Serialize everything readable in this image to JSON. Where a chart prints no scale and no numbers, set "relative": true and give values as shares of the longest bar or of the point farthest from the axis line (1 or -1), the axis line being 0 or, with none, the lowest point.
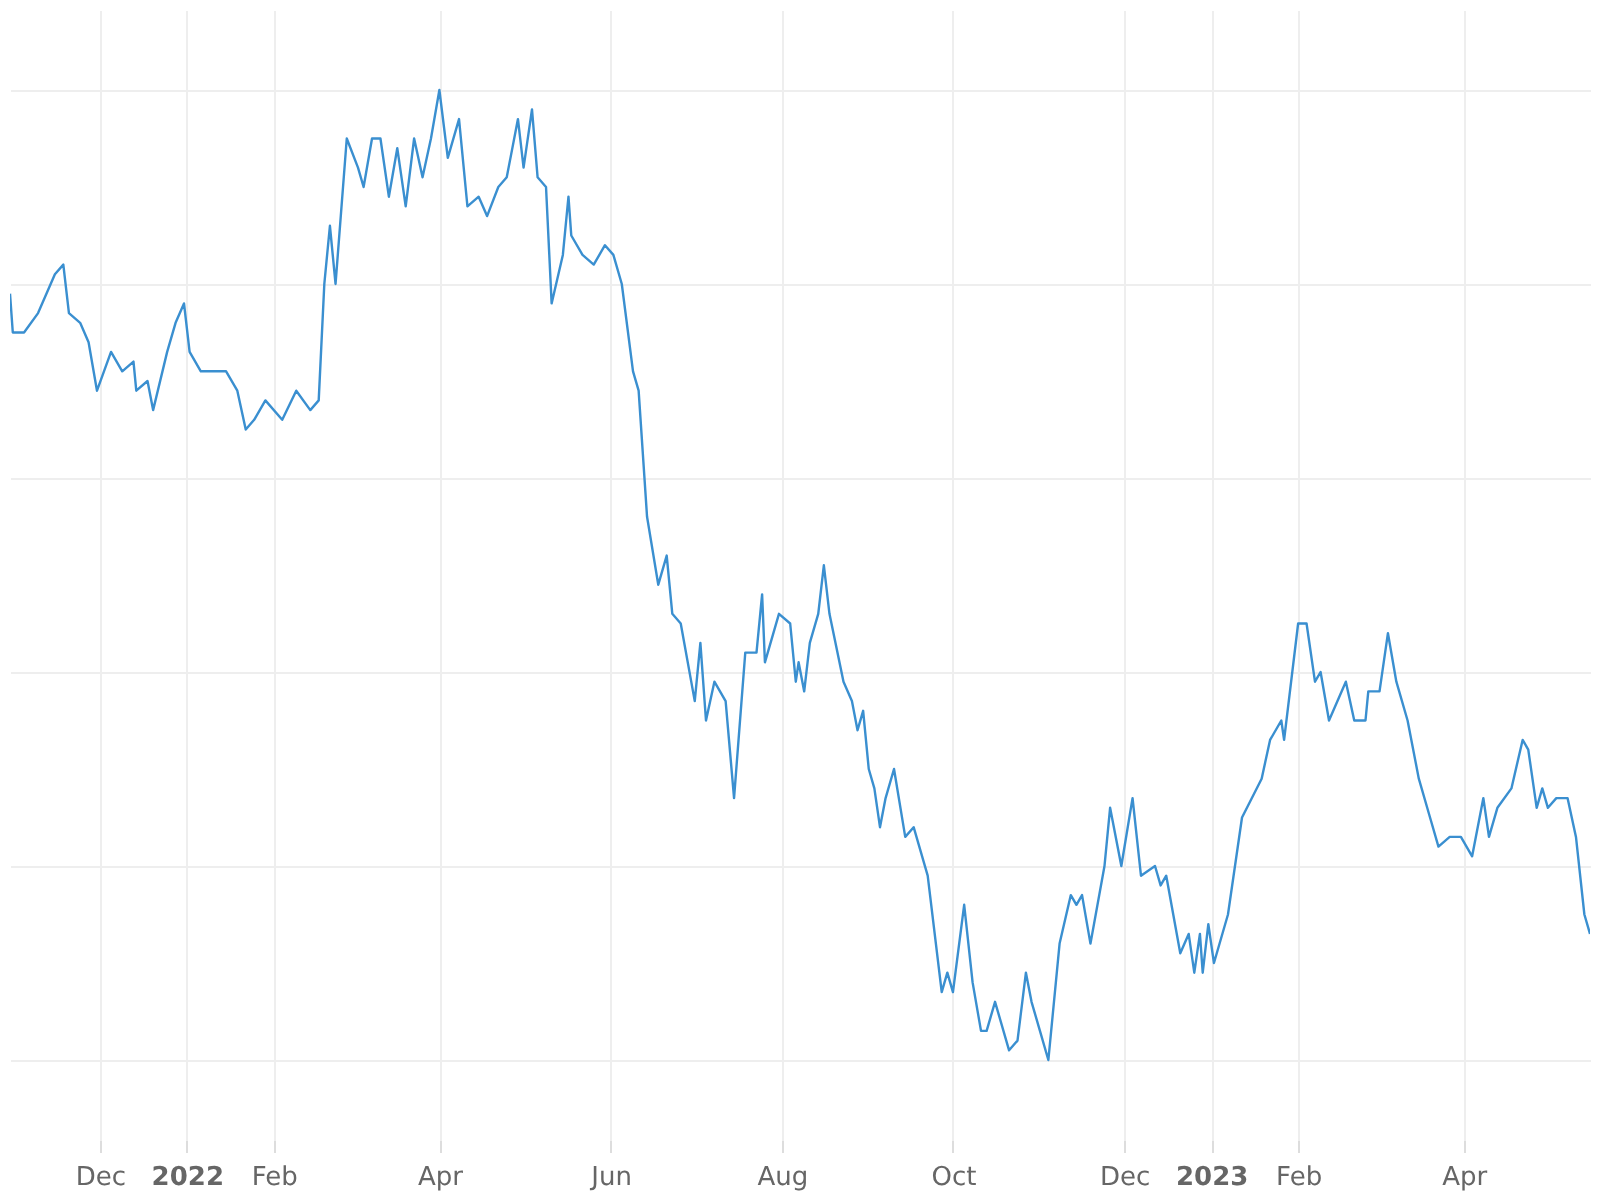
{
  "chart_data": {
    "type": "line",
    "relative": true,
    "grid": true,
    "line_style": "solid",
    "marker": "none",
    "xlim": [
      "2021-10-30",
      "2023-05-16"
    ],
    "xticks": [
      {
        "value": "2021-12-01",
        "label": "Dec"
      },
      {
        "value": "2022-01-01",
        "label": "2022"
      },
      {
        "value": "2022-02-01",
        "label": "Feb"
      },
      {
        "value": "2022-04-01",
        "label": "Apr"
      },
      {
        "value": "2022-06-01",
        "label": "Jun"
      },
      {
        "value": "2022-08-01",
        "label": "Aug"
      },
      {
        "value": "2022-10-01",
        "label": "Oct"
      },
      {
        "value": "2022-12-01",
        "label": "Dec"
      },
      {
        "value": "2023-01-01",
        "label": "2023"
      },
      {
        "value": "2023-02-01",
        "label": "Feb"
      },
      {
        "value": "2023-04-01",
        "label": "Apr"
      }
    ],
    "x": [
      "2021-10-30",
      "2021-10-31",
      "2021-11-04",
      "2021-11-09",
      "2021-11-15",
      "2021-11-18",
      "2021-11-20",
      "2021-11-24",
      "2021-11-27",
      "2021-11-30",
      "2021-12-05",
      "2021-12-09",
      "2021-12-13",
      "2021-12-14",
      "2021-12-18",
      "2021-12-20",
      "2021-12-25",
      "2021-12-28",
      "2021-12-31",
      "2022-01-02",
      "2022-01-06",
      "2022-01-11",
      "2022-01-15",
      "2022-01-19",
      "2022-01-22",
      "2022-01-25",
      "2022-01-29",
      "2022-02-04",
      "2022-02-09",
      "2022-02-14",
      "2022-02-17",
      "2022-02-19",
      "2022-02-21",
      "2022-02-23",
      "2022-02-27",
      "2022-03-03",
      "2022-03-05",
      "2022-03-08",
      "2022-03-11",
      "2022-03-14",
      "2022-03-17",
      "2022-03-20",
      "2022-03-23",
      "2022-03-26",
      "2022-03-29",
      "2022-04-01",
      "2022-04-04",
      "2022-04-08",
      "2022-04-11",
      "2022-04-15",
      "2022-04-18",
      "2022-04-22",
      "2022-04-25",
      "2022-04-29",
      "2022-05-01",
      "2022-05-04",
      "2022-05-06",
      "2022-05-09",
      "2022-05-11",
      "2022-05-15",
      "2022-05-17",
      "2022-05-18",
      "2022-05-22",
      "2022-05-26",
      "2022-05-30",
      "2022-06-02",
      "2022-06-05",
      "2022-06-09",
      "2022-06-11",
      "2022-06-14",
      "2022-06-18",
      "2022-06-21",
      "2022-06-23",
      "2022-06-26",
      "2022-07-01",
      "2022-07-03",
      "2022-07-05",
      "2022-07-08",
      "2022-07-12",
      "2022-07-15",
      "2022-07-19",
      "2022-07-23",
      "2022-07-25",
      "2022-07-26",
      "2022-07-31",
      "2022-08-04",
      "2022-08-06",
      "2022-08-07",
      "2022-08-09",
      "2022-08-11",
      "2022-08-14",
      "2022-08-16",
      "2022-08-18",
      "2022-08-23",
      "2022-08-26",
      "2022-08-28",
      "2022-08-30",
      "2022-09-01",
      "2022-09-03",
      "2022-09-05",
      "2022-09-07",
      "2022-09-10",
      "2022-09-14",
      "2022-09-17",
      "2022-09-22",
      "2022-09-27",
      "2022-09-29",
      "2022-10-01",
      "2022-10-05",
      "2022-10-08",
      "2022-10-11",
      "2022-10-13",
      "2022-10-16",
      "2022-10-21",
      "2022-10-24",
      "2022-10-27",
      "2022-10-29",
      "2022-11-01",
      "2022-11-04",
      "2022-11-08",
      "2022-11-12",
      "2022-11-14",
      "2022-11-16",
      "2022-11-19",
      "2022-11-24",
      "2022-11-26",
      "2022-11-30",
      "2022-12-04",
      "2022-12-07",
      "2022-12-12",
      "2022-12-14",
      "2022-12-16",
      "2022-12-21",
      "2022-12-24",
      "2022-12-26",
      "2022-12-28",
      "2022-12-29",
      "2022-12-31",
      "2023-01-02",
      "2023-01-07",
      "2023-01-12",
      "2023-01-19",
      "2023-01-22",
      "2023-01-26",
      "2023-01-27",
      "2023-02-01",
      "2023-02-04",
      "2023-02-07",
      "2023-02-09",
      "2023-02-12",
      "2023-02-18",
      "2023-02-21",
      "2023-02-25",
      "2023-02-26",
      "2023-03-02",
      "2023-03-05",
      "2023-03-08",
      "2023-03-12",
      "2023-03-16",
      "2023-03-20",
      "2023-03-23",
      "2023-03-27",
      "2023-03-31",
      "2023-04-04",
      "2023-04-08",
      "2023-04-10",
      "2023-04-13",
      "2023-04-18",
      "2023-04-22",
      "2023-04-24",
      "2023-04-27",
      "2023-04-29",
      "2023-05-01",
      "2023-05-04",
      "2023-05-08",
      "2023-05-11",
      "2023-05-14",
      "2023-05-16"
    ],
    "series": [
      {
        "color": "#3a8fd0",
        "values": [
          0.79,
          0.75,
          0.75,
          0.77,
          0.81,
          0.82,
          0.77,
          0.76,
          0.74,
          0.69,
          0.73,
          0.71,
          0.72,
          0.69,
          0.7,
          0.67,
          0.73,
          0.76,
          0.78,
          0.73,
          0.71,
          0.71,
          0.71,
          0.69,
          0.65,
          0.66,
          0.68,
          0.66,
          0.69,
          0.67,
          0.68,
          0.8,
          0.86,
          0.8,
          0.95,
          0.92,
          0.9,
          0.95,
          0.95,
          0.89,
          0.94,
          0.88,
          0.95,
          0.91,
          0.95,
          1.0,
          0.93,
          0.97,
          0.88,
          0.89,
          0.87,
          0.9,
          0.91,
          0.97,
          0.92,
          0.98,
          0.91,
          0.9,
          0.78,
          0.83,
          0.89,
          0.85,
          0.83,
          0.82,
          0.84,
          0.83,
          0.8,
          0.71,
          0.69,
          0.56,
          0.49,
          0.52,
          0.46,
          0.45,
          0.37,
          0.43,
          0.35,
          0.39,
          0.37,
          0.27,
          0.42,
          0.42,
          0.48,
          0.41,
          0.46,
          0.45,
          0.39,
          0.41,
          0.38,
          0.43,
          0.46,
          0.51,
          0.46,
          0.39,
          0.37,
          0.34,
          0.36,
          0.3,
          0.28,
          0.24,
          0.27,
          0.3,
          0.23,
          0.24,
          0.19,
          0.07,
          0.09,
          0.07,
          0.16,
          0.08,
          0.03,
          0.03,
          0.06,
          0.01,
          0.02,
          0.09,
          0.06,
          0.03,
          0.0,
          0.12,
          0.17,
          0.16,
          0.17,
          0.12,
          0.2,
          0.26,
          0.2,
          0.27,
          0.19,
          0.2,
          0.18,
          0.19,
          0.11,
          0.13,
          0.09,
          0.13,
          0.09,
          0.14,
          0.1,
          0.15,
          0.25,
          0.29,
          0.33,
          0.35,
          0.33,
          0.45,
          0.45,
          0.39,
          0.4,
          0.35,
          0.39,
          0.35,
          0.35,
          0.38,
          0.38,
          0.44,
          0.39,
          0.35,
          0.29,
          0.25,
          0.22,
          0.23,
          0.23,
          0.21,
          0.27,
          0.23,
          0.26,
          0.28,
          0.33,
          0.32,
          0.26,
          0.28,
          0.26,
          0.27,
          0.27,
          0.23,
          0.15,
          0.13
        ]
      }
    ]
  }
}
